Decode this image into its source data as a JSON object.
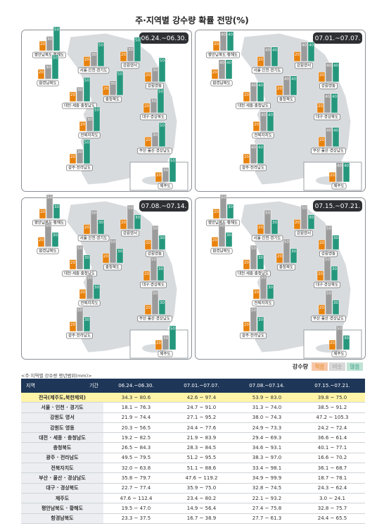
{
  "title": "주·지역별 강수량 확률 전망(%)",
  "panels": [
    {
      "period": "06.24.~06.30.",
      "regions": [
        {
          "name": "평안남북도·황해도",
          "values": [
            20,
            30,
            50
          ]
        },
        {
          "name": "함경남북도",
          "values": [
            20,
            30,
            50
          ]
        },
        {
          "name": "서울·인천·경기도",
          "values": [
            20,
            30,
            50
          ]
        },
        {
          "name": "강원영서",
          "values": [
            20,
            30,
            50
          ]
        },
        {
          "name": "강원영동",
          "values": [
            20,
            30,
            50
          ]
        },
        {
          "name": "대전·세종·충청남도",
          "values": [
            20,
            30,
            50
          ]
        },
        {
          "name": "충청북도",
          "values": [
            20,
            30,
            50
          ]
        },
        {
          "name": "대구·경상북도",
          "values": [
            20,
            30,
            50
          ]
        },
        {
          "name": "전북자치도",
          "values": [
            20,
            30,
            50
          ]
        },
        {
          "name": "부산·울산·경상남도",
          "values": [
            20,
            30,
            50
          ]
        },
        {
          "name": "광주·전라남도",
          "values": [
            20,
            30,
            50
          ]
        },
        {
          "name": "제주도",
          "values": [
            20,
            30,
            50
          ]
        }
      ]
    },
    {
      "period": "07.01.~07.07.",
      "regions": [
        {
          "name": "평안남북도·황해도",
          "values": [
            20,
            40,
            40
          ]
        },
        {
          "name": "함경남북도",
          "values": [
            20,
            40,
            40
          ]
        },
        {
          "name": "서울·인천·경기도",
          "values": [
            20,
            40,
            40
          ]
        },
        {
          "name": "강원영서",
          "values": [
            20,
            40,
            40
          ]
        },
        {
          "name": "강원영동",
          "values": [
            20,
            40,
            40
          ]
        },
        {
          "name": "대전·세종·충청남도",
          "values": [
            20,
            40,
            40
          ]
        },
        {
          "name": "충청북도",
          "values": [
            20,
            40,
            40
          ]
        },
        {
          "name": "대구·경상북도",
          "values": [
            20,
            40,
            40
          ]
        },
        {
          "name": "전북자치도",
          "values": [
            20,
            40,
            40
          ]
        },
        {
          "name": "부산·울산·경상남도",
          "values": [
            20,
            40,
            40
          ]
        },
        {
          "name": "광주·전라남도",
          "values": [
            20,
            40,
            40
          ]
        },
        {
          "name": "제주도",
          "values": [
            20,
            40,
            40
          ]
        }
      ]
    },
    {
      "period": "07.08.~07.14.",
      "regions": [
        {
          "name": "평안남북도·황해도",
          "values": [
            20,
            50,
            30
          ]
        },
        {
          "name": "함경남북도",
          "values": [
            20,
            50,
            30
          ]
        },
        {
          "name": "서울·인천·경기도",
          "values": [
            20,
            50,
            30
          ]
        },
        {
          "name": "강원영서",
          "values": [
            20,
            50,
            30
          ]
        },
        {
          "name": "강원영동",
          "values": [
            20,
            50,
            30
          ]
        },
        {
          "name": "대전·세종·충청남도",
          "values": [
            20,
            50,
            30
          ]
        },
        {
          "name": "충청북도",
          "values": [
            20,
            50,
            30
          ]
        },
        {
          "name": "대구·경상북도",
          "values": [
            20,
            50,
            30
          ]
        },
        {
          "name": "전북자치도",
          "values": [
            20,
            50,
            30
          ]
        },
        {
          "name": "부산·울산·경상남도",
          "values": [
            20,
            50,
            30
          ]
        },
        {
          "name": "광주·전라남도",
          "values": [
            20,
            50,
            30
          ]
        },
        {
          "name": "제주도",
          "values": [
            20,
            30,
            50
          ]
        }
      ]
    },
    {
      "period": "07.15.~07.21.",
      "regions": [
        {
          "name": "평안남북도·황해도",
          "values": [
            20,
            50,
            30
          ]
        },
        {
          "name": "함경남북도",
          "values": [
            20,
            50,
            30
          ]
        },
        {
          "name": "서울·인천·경기도",
          "values": [
            20,
            50,
            30
          ]
        },
        {
          "name": "강원영서",
          "values": [
            20,
            50,
            30
          ]
        },
        {
          "name": "강원영동",
          "values": [
            20,
            50,
            30
          ]
        },
        {
          "name": "대전·세종·충청남도",
          "values": [
            20,
            50,
            30
          ]
        },
        {
          "name": "충청북도",
          "values": [
            20,
            50,
            30
          ]
        },
        {
          "name": "대구·경상북도",
          "values": [
            20,
            50,
            30
          ]
        },
        {
          "name": "전북자치도",
          "values": [
            20,
            50,
            30
          ]
        },
        {
          "name": "부산·울산·경상남도",
          "values": [
            20,
            50,
            30
          ]
        },
        {
          "name": "광주·전라남도",
          "values": [
            20,
            50,
            30
          ]
        },
        {
          "name": "제주도",
          "values": [
            20,
            50,
            30
          ]
        }
      ]
    }
  ],
  "legend": {
    "title": "강수량",
    "items": [
      {
        "label": "적음",
        "color": "#e8820c"
      },
      {
        "label": "비슷",
        "color": "#9b9b9b"
      },
      {
        "label": "많음",
        "color": "#25977c"
      }
    ]
  },
  "table": {
    "caption": "<주·지역별 강수량 평년범위(mm)>",
    "corner": [
      "지역",
      "기간"
    ],
    "columns": [
      "06.24.~06.30.",
      "07.01.~07.07.",
      "07.08.~07.14.",
      "07.15.~07.21."
    ],
    "rows": [
      [
        "전국(제주도,북한제외)",
        "34.3 ~ 80.6",
        "42.6 ~ 97.4",
        "53.9 ~ 83.0",
        "39.8 ~ 75.0"
      ],
      [
        "서울 · 인천 · 경기도",
        "18.1 ~ 76.3",
        "24.7 ~ 91.0",
        "31.3 ~ 74.0",
        "38.5 ~ 91.2"
      ],
      [
        "강원도 영서",
        "21.9 ~ 74.4",
        "27.1 ~ 95.2",
        "38.0 ~ 74.3",
        "47.2 ~ 105.3"
      ],
      [
        "강원도 영동",
        "20.3 ~ 56.5",
        "24.4 ~ 77.6",
        "24.9 ~ 73.3",
        "24.2 ~ 72.4"
      ],
      [
        "대전 · 세종 · 충청남도",
        "19.2 ~ 82.5",
        "21.9 ~ 83.9",
        "29.4 ~ 69.3",
        "36.6 ~ 61.4"
      ],
      [
        "충청북도",
        "26.5 ~ 84.3",
        "28.3 ~ 84.5",
        "34.6 ~ 93.1",
        "40.1 ~ 77.1"
      ],
      [
        "광주 · 전라남도",
        "49.5 ~ 79.5",
        "51.2 ~ 95.5",
        "38.3 ~ 97.0",
        "16.6 ~ 70.2"
      ],
      [
        "전북자치도",
        "32.0 ~ 63.8",
        "51.1 ~ 88.6",
        "33.4 ~ 98.1",
        "36.1 ~ 68.7"
      ],
      [
        "부산 · 울산 · 경상남도",
        "35.8 ~ 79.7",
        "47.6 ~ 119.2",
        "34.9 ~ 99.9",
        "18.7 ~ 78.1"
      ],
      [
        "대구 · 경상북도",
        "22.7 ~ 77.4",
        "35.9 ~ 75.0",
        "32.8 ~ 74.5",
        "24.3 ~ 62.4"
      ],
      [
        "제주도",
        "47.6 ~ 112.4",
        "23.4 ~ 80.2",
        "22.1 ~ 93.2",
        "3.0 ~ 24.1"
      ],
      [
        "평안남북도 · 황해도",
        "19.5 ~ 47.0",
        "14.9 ~ 56.4",
        "27.4 ~ 75.8",
        "32.8 ~ 75.7"
      ],
      [
        "함경남북도",
        "23.3 ~ 37.5",
        "16.7 ~ 38.9",
        "27.7 ~ 61.3",
        "24.4 ~ 65.5"
      ]
    ]
  }
}
